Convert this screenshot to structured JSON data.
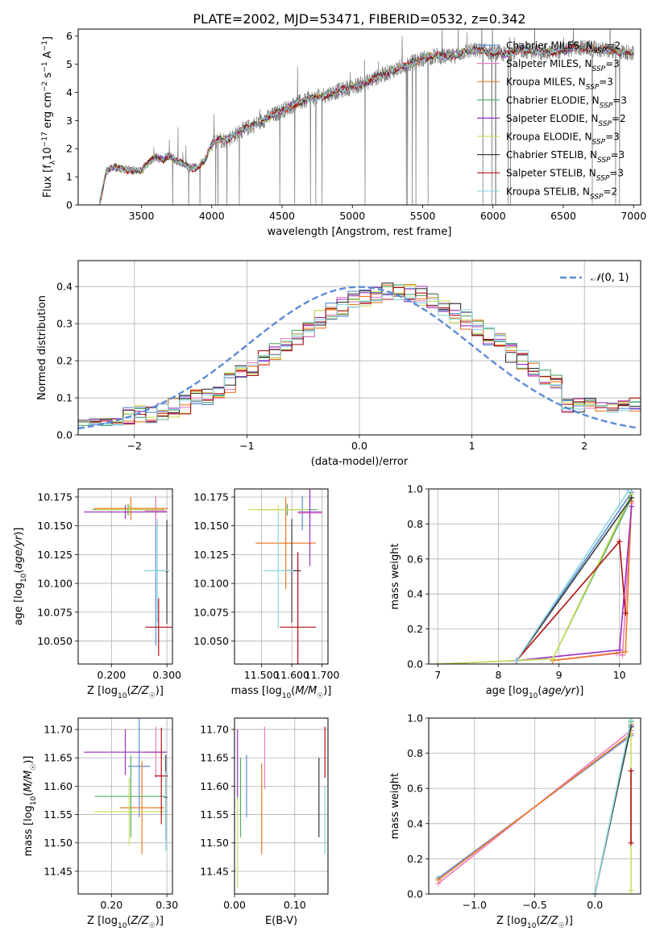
{
  "title": "PLATE=2002, MJD=53471, FIBERID=0532, z=0.342",
  "colors": {
    "chab_miles": "#5b8bd6",
    "salp_miles": "#e87fbf",
    "krou_miles": "#f07a22",
    "chab_elodie": "#55a868",
    "salp_elodie": "#9a2fbf",
    "krou_elodie": "#c9e05a",
    "chab_stelib": "#3a3a3a",
    "salp_stelib": "#b01010",
    "krou_stelib": "#8cd6e0",
    "data": "#7f7f7f",
    "normal": "#5b8bd6"
  },
  "chart_data": [
    {
      "id": "spectrum",
      "type": "line",
      "xlabel": "wavelength [Angstrom, rest frame]",
      "ylabel": "Flux [f$_\\lambda$10$^{-17}$ erg cm$^{-2}$ s$^{-1}$ A$^{-1}$]",
      "xlim": [
        3050,
        7050
      ],
      "ylim": [
        0,
        6.25
      ],
      "xticks": [
        3500,
        4000,
        4500,
        5000,
        5500,
        6000,
        6500,
        7000
      ],
      "yticks": [
        0,
        1,
        2,
        3,
        4,
        5,
        6
      ],
      "grid": false,
      "legend_position": "upper right",
      "legend": [
        {
          "key": "chab_miles",
          "label": "Chabrier MILES, N",
          "sub": "SSP",
          "suffix": "=2"
        },
        {
          "key": "salp_miles",
          "label": "Salpeter MILES, N",
          "sub": "SSP",
          "suffix": "=3"
        },
        {
          "key": "krou_miles",
          "label": "Kroupa MILES, N",
          "sub": "SSP",
          "suffix": "=3"
        },
        {
          "key": "chab_elodie",
          "label": "Chabrier ELODIE, N",
          "sub": "SSP",
          "suffix": "=3"
        },
        {
          "key": "salp_elodie",
          "label": "Salpeter ELODIE, N",
          "sub": "SSP",
          "suffix": "=2"
        },
        {
          "key": "krou_elodie",
          "label": "Kroupa ELODIE, N",
          "sub": "SSP",
          "suffix": "=3"
        },
        {
          "key": "chab_stelib",
          "label": "Chabrier STELIB, N",
          "sub": "SSP",
          "suffix": "=3"
        },
        {
          "key": "salp_stelib",
          "label": "Salpeter STELIB, N",
          "sub": "SSP",
          "suffix": "=3"
        },
        {
          "key": "krou_stelib",
          "label": "Kroupa STELIB, N",
          "sub": "SSP",
          "suffix": "=2"
        }
      ],
      "continuum": {
        "x": [
          3200,
          3250,
          3300,
          3400,
          3500,
          3550,
          3600,
          3650,
          3700,
          3750,
          3800,
          3850,
          3900,
          3950,
          4000,
          4050,
          4100,
          4200,
          4300,
          4400,
          4500,
          4600,
          4700,
          4800,
          4900,
          5000,
          5100,
          5200,
          5300,
          5400,
          5500,
          5600,
          5700,
          5800,
          5900,
          6000,
          6100,
          6200,
          6300,
          6400,
          6500,
          6600,
          6700,
          6800,
          6900,
          7000
        ],
        "y": [
          0.0,
          1.2,
          1.35,
          1.25,
          1.2,
          1.5,
          1.7,
          1.6,
          1.75,
          1.55,
          1.45,
          1.3,
          1.35,
          1.55,
          2.15,
          2.35,
          2.3,
          2.6,
          2.85,
          3.1,
          3.35,
          3.6,
          3.75,
          3.9,
          4.05,
          4.2,
          4.35,
          4.6,
          4.8,
          5.0,
          5.2,
          5.3,
          5.25,
          5.45,
          5.5,
          5.4,
          5.35,
          5.5,
          5.45,
          5.4,
          5.5,
          5.6,
          5.55,
          5.5,
          5.45,
          5.4
        ]
      }
    },
    {
      "id": "residuals",
      "type": "step",
      "xlabel": "(data-model)/error",
      "ylabel": "Normed distribution",
      "xlim": [
        -2.5,
        2.5
      ],
      "ylim": [
        0,
        0.47
      ],
      "xticks": [
        -2,
        -1,
        0,
        1,
        2
      ],
      "yticks": [
        0.0,
        0.1,
        0.2,
        0.3,
        0.4
      ],
      "grid": true,
      "legend_position": "upper right",
      "normal_label": "N(0,1)",
      "bin_width": 0.1
    },
    {
      "id": "age_vs_Z",
      "type": "errorbar",
      "xlabel": "Z [log$_{10}$(Z/Z$_\\odot$)]",
      "ylabel": "age  [log$_{10}$(age/yr)]",
      "xlim": [
        0.14,
        0.31
      ],
      "ylim": [
        10.03,
        10.182
      ],
      "xticks": [
        0.2,
        0.3
      ],
      "yticks": [
        10.05,
        10.075,
        10.1,
        10.125,
        10.15,
        10.175
      ],
      "grid": true,
      "points": [
        {
          "c": "chab_miles",
          "x": 0.28,
          "y": 10.111,
          "xe": 0.02,
          "ye": 0.065
        },
        {
          "c": "salp_miles",
          "x": 0.28,
          "y": 10.163,
          "xe": 0.02,
          "ye": 0.013
        },
        {
          "c": "krou_miles",
          "x": 0.235,
          "y": 10.165,
          "xe": 0.067,
          "ye": 0.01
        },
        {
          "c": "chab_elodie",
          "x": 0.23,
          "y": 10.164,
          "xe": 0.065,
          "ye": 0.005
        },
        {
          "c": "salp_elodie",
          "x": 0.225,
          "y": 10.162,
          "xe": 0.075,
          "ye": 0.006
        },
        {
          "c": "krou_elodie",
          "x": 0.232,
          "y": 10.164,
          "xe": 0.06,
          "ye": 0.004
        },
        {
          "c": "chab_stelib",
          "x": 0.3,
          "y": 10.11,
          "xe": 0.002,
          "ye": 0.045
        },
        {
          "c": "salp_stelib",
          "x": 0.285,
          "y": 10.062,
          "xe": 0.024,
          "ye": 0.025
        },
        {
          "c": "krou_stelib",
          "x": 0.283,
          "y": 10.111,
          "xe": 0.022,
          "ye": 0.045
        }
      ]
    },
    {
      "id": "age_vs_mass",
      "type": "errorbar",
      "xlabel": "mass [log$_{10}$(M/M$_\\odot$)]",
      "ylabel": "",
      "xlim": [
        11.41,
        11.72
      ],
      "ylim": [
        10.03,
        10.182
      ],
      "xticks": [
        11.5,
        11.6,
        11.7
      ],
      "yticks": [
        10.05,
        10.075,
        10.1,
        10.125,
        10.15,
        10.175
      ],
      "grid": true,
      "points": [
        {
          "c": "chab_miles",
          "x": 11.635,
          "y": 10.161,
          "xe": 0.005,
          "ye": 0.015
        },
        {
          "c": "salp_miles",
          "x": 11.66,
          "y": 10.161,
          "xe": 0.04,
          "ye": 0.015
        },
        {
          "c": "krou_miles",
          "x": 11.58,
          "y": 10.135,
          "xe": 0.1,
          "ye": 0.04
        },
        {
          "c": "chab_elodie",
          "x": 11.585,
          "y": 10.164,
          "xe": 0.1,
          "ye": 0.005
        },
        {
          "c": "salp_elodie",
          "x": 11.66,
          "y": 10.162,
          "xe": 0.04,
          "ye": 0.047
        },
        {
          "c": "krou_elodie",
          "x": 11.555,
          "y": 10.164,
          "xe": 0.1,
          "ye": 0.004
        },
        {
          "c": "chab_stelib",
          "x": 11.6,
          "y": 10.111,
          "xe": 0.03,
          "ye": 0.045
        },
        {
          "c": "salp_stelib",
          "x": 11.62,
          "y": 10.062,
          "xe": 0.06,
          "ye": 0.065
        },
        {
          "c": "krou_stelib",
          "x": 11.555,
          "y": 10.111,
          "xe": 0.05,
          "ye": 0.05
        }
      ]
    },
    {
      "id": "weight_vs_age",
      "type": "line",
      "xlabel": "age  [log$_{10}$(age/yr)]",
      "ylabel": "mass weight",
      "xlim": [
        6.85,
        10.35
      ],
      "ylim": [
        0,
        1.0
      ],
      "xticks": [
        7,
        8,
        9,
        10
      ],
      "yticks": [
        0.0,
        0.2,
        0.4,
        0.6,
        0.8,
        1.0
      ],
      "grid": true,
      "series": [
        {
          "c": "chab_miles",
          "x": [
            7.0,
            8.3,
            10.2
          ],
          "y": [
            0.0,
            0.02,
            0.98
          ]
        },
        {
          "c": "salp_miles",
          "x": [
            8.9,
            9.95,
            10.05,
            10.2
          ],
          "y": [
            0.02,
            0.06,
            0.05,
            0.92
          ]
        },
        {
          "c": "krou_miles",
          "x": [
            8.9,
            10.1,
            10.2
          ],
          "y": [
            0.02,
            0.07,
            0.93
          ]
        },
        {
          "c": "chab_elodie",
          "x": [
            8.3,
            8.9,
            10.2
          ],
          "y": [
            0.02,
            0.03,
            0.95
          ]
        },
        {
          "c": "salp_elodie",
          "x": [
            8.3,
            10.0,
            10.2
          ],
          "y": [
            0.02,
            0.08,
            0.9
          ]
        },
        {
          "c": "krou_elodie",
          "x": [
            7.0,
            8.9,
            10.2
          ],
          "y": [
            0.0,
            0.03,
            0.97
          ]
        },
        {
          "c": "chab_stelib",
          "x": [
            8.3,
            10.2
          ],
          "y": [
            0.02,
            0.95
          ]
        },
        {
          "c": "salp_stelib",
          "x": [
            8.3,
            10.0,
            10.1
          ],
          "y": [
            0.02,
            0.7,
            0.29
          ]
        },
        {
          "c": "krou_stelib",
          "x": [
            8.3,
            10.15
          ],
          "y": [
            0.02,
            0.99
          ]
        }
      ]
    },
    {
      "id": "mass_vs_Z",
      "type": "errorbar",
      "xlabel": "Z [log$_{10}$(Z/Z$_\\odot$)]",
      "ylabel": "mass [log$_{10}$(M/M$_\\odot$)]",
      "xlim": [
        0.14,
        0.31
      ],
      "ylim": [
        11.41,
        11.72
      ],
      "xticks": [
        0.2,
        0.3
      ],
      "yticks": [
        11.45,
        11.5,
        11.55,
        11.6,
        11.65,
        11.7
      ],
      "grid": true,
      "points": [
        {
          "c": "chab_miles",
          "x": 0.25,
          "y": 11.635,
          "xe": 0.02,
          "ye": 0.09
        },
        {
          "c": "salp_miles",
          "x": 0.28,
          "y": 11.66,
          "xe": 0.02,
          "ye": 0.045
        },
        {
          "c": "krou_miles",
          "x": 0.255,
          "y": 11.562,
          "xe": 0.04,
          "ye": 0.082
        },
        {
          "c": "chab_elodie",
          "x": 0.235,
          "y": 11.582,
          "xe": 0.065,
          "ye": 0.072
        },
        {
          "c": "salp_elodie",
          "x": 0.225,
          "y": 11.66,
          "xe": 0.075,
          "ye": 0.04
        },
        {
          "c": "krou_elodie",
          "x": 0.232,
          "y": 11.555,
          "xe": 0.062,
          "ye": 0.06
        },
        {
          "c": "chab_stelib",
          "x": 0.298,
          "y": 11.58,
          "xe": 0.003,
          "ye": 0.075
        },
        {
          "c": "salp_stelib",
          "x": 0.29,
          "y": 11.618,
          "xe": 0.012,
          "ye": 0.085
        },
        {
          "c": "krou_stelib",
          "x": 0.298,
          "y": 11.556,
          "xe": 0.004,
          "ye": 0.07
        }
      ]
    },
    {
      "id": "Ebv",
      "type": "errorbar",
      "xlabel": "E(B-V)",
      "ylabel": "",
      "xlim": [
        0.0,
        0.155
      ],
      "ylim": [
        11.41,
        11.72
      ],
      "xticks": [
        0.0,
        0.1
      ],
      "yticks": [
        11.45,
        11.5,
        11.55,
        11.6,
        11.65,
        11.7
      ],
      "grid": true,
      "points": [
        {
          "c": "chab_miles",
          "x": 0.02,
          "y": 11.6,
          "xe": 0,
          "ye": 0.055
        },
        {
          "c": "salp_miles",
          "x": 0.05,
          "y": 11.65,
          "xe": 0,
          "ye": 0.055
        },
        {
          "c": "krou_miles",
          "x": 0.045,
          "y": 11.56,
          "xe": 0,
          "ye": 0.08
        },
        {
          "c": "chab_elodie",
          "x": 0.01,
          "y": 11.58,
          "xe": 0,
          "ye": 0.07
        },
        {
          "c": "salp_elodie",
          "x": 0.005,
          "y": 11.64,
          "xe": 0,
          "ye": 0.06
        },
        {
          "c": "krou_elodie",
          "x": 0.005,
          "y": 11.5,
          "xe": 0,
          "ye": 0.08
        },
        {
          "c": "chab_stelib",
          "x": 0.14,
          "y": 11.58,
          "xe": 0,
          "ye": 0.07
        },
        {
          "c": "salp_stelib",
          "x": 0.15,
          "y": 11.66,
          "xe": 0,
          "ye": 0.045
        },
        {
          "c": "krou_stelib",
          "x": 0.15,
          "y": 11.54,
          "xe": 0,
          "ye": 0.06
        }
      ]
    },
    {
      "id": "weight_vs_Z",
      "type": "line",
      "xlabel": "Z [log$_{10}$(Z/Z$_\\odot$)]",
      "ylabel": "mass weight",
      "xlim": [
        -1.38,
        0.38
      ],
      "ylim": [
        0,
        1.0
      ],
      "xticks": [
        -1.0,
        -0.5,
        0.0
      ],
      "yticks": [
        0.0,
        0.2,
        0.4,
        0.6,
        0.8,
        1.0
      ],
      "grid": true,
      "series": [
        {
          "c": "chab_miles",
          "x": [
            -1.3,
            0.3
          ],
          "y": [
            0.09,
            0.9
          ]
        },
        {
          "c": "salp_miles",
          "x": [
            -1.3,
            0.3
          ],
          "y": [
            0.06,
            0.93
          ]
        },
        {
          "c": "krou_miles",
          "x": [
            -1.3,
            0.3
          ],
          "y": [
            0.08,
            0.91
          ]
        },
        {
          "c": "chab_elodie",
          "x": [
            0.0,
            0.3
          ],
          "y": [
            0.0,
            0.98
          ]
        },
        {
          "c": "salp_elodie",
          "x": [
            0.0,
            0.3
          ],
          "y": [
            0.0,
            0.96
          ]
        },
        {
          "c": "krou_elodie",
          "x": [
            0.0,
            0.3,
            0.3
          ],
          "y": [
            0.0,
            0.97,
            0.02
          ]
        },
        {
          "c": "chab_stelib",
          "x": [
            0.0,
            0.3
          ],
          "y": [
            0.0,
            0.95
          ]
        },
        {
          "c": "salp_stelib",
          "x": [
            0.3,
            0.3
          ],
          "y": [
            0.7,
            0.29
          ]
        },
        {
          "c": "krou_stelib",
          "x": [
            0.0,
            0.3
          ],
          "y": [
            0.0,
            0.99
          ]
        }
      ]
    }
  ]
}
